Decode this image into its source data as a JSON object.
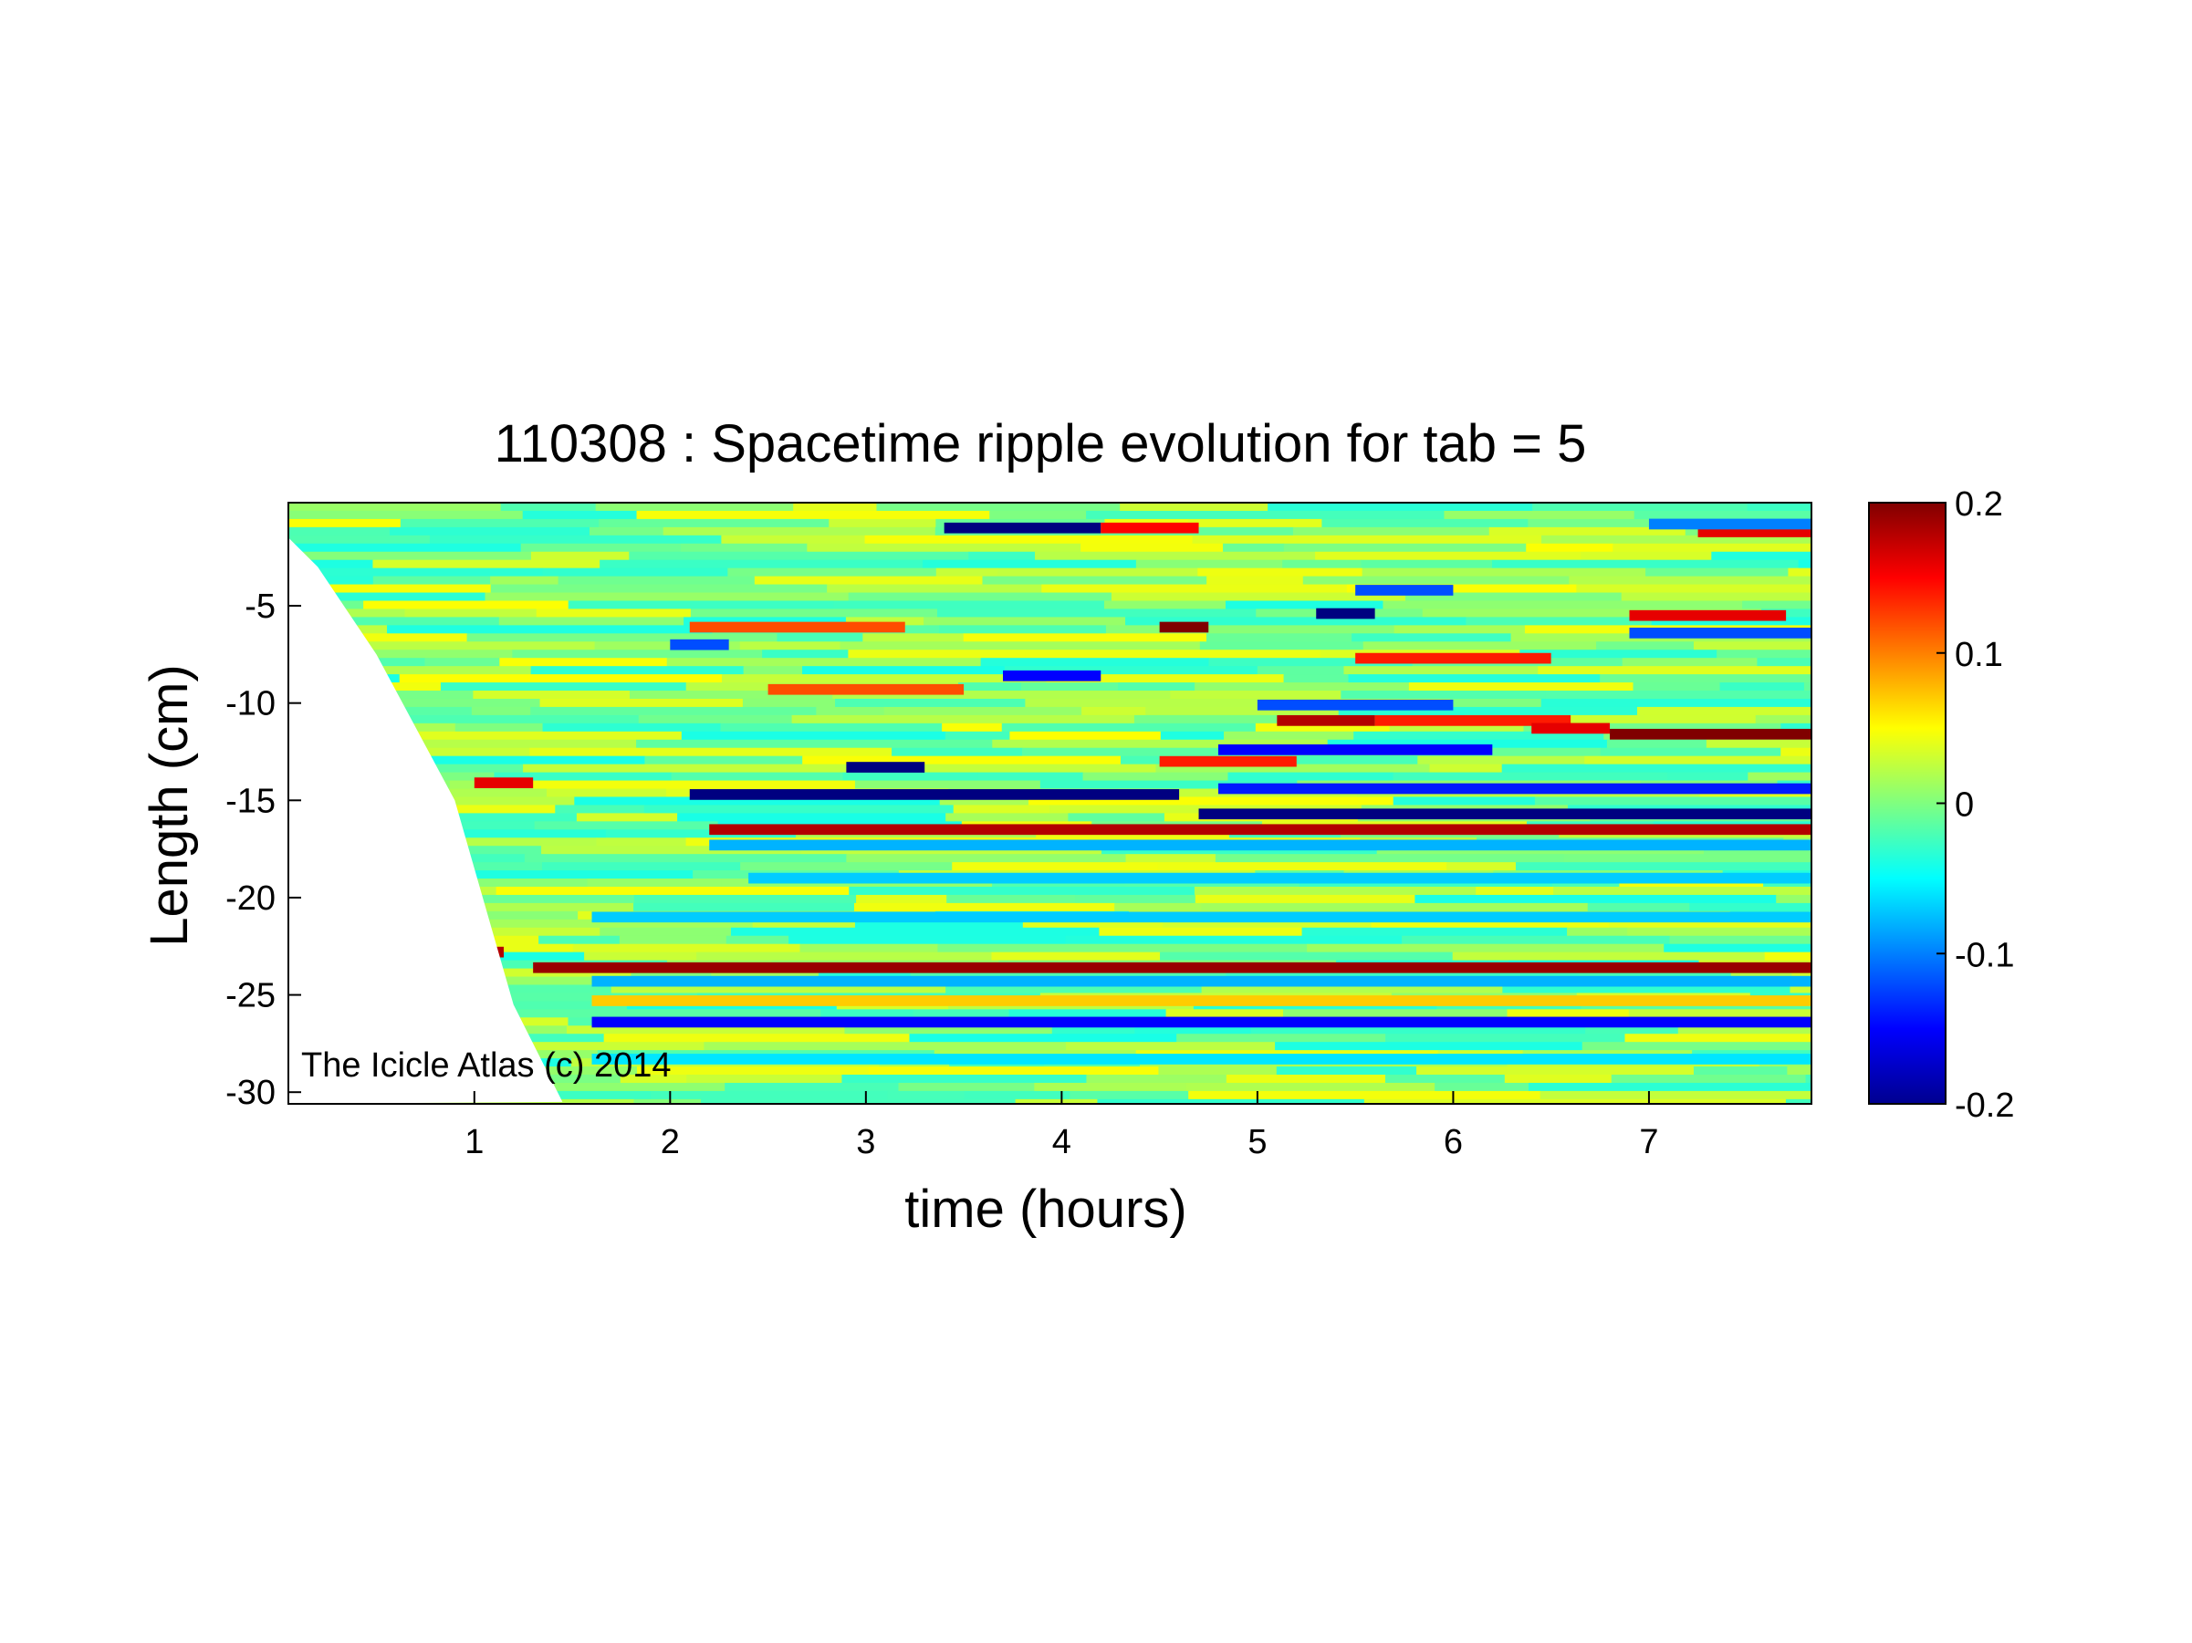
{
  "chart_data": {
    "type": "heatmap",
    "title": "110308 : Spacetime ripple evolution for tab = 5",
    "xlabel": "time (hours)",
    "ylabel": "Length (cm)",
    "xlim": [
      0.05,
      7.83
    ],
    "ylim": [
      -30.6,
      0.3
    ],
    "xticks": [
      1,
      2,
      3,
      4,
      5,
      6,
      7
    ],
    "xtick_labels": [
      "1",
      "2",
      "3",
      "4",
      "5",
      "6",
      "7"
    ],
    "yticks": [
      -5,
      -10,
      -15,
      -20,
      -25,
      -30
    ],
    "ytick_labels": [
      "-5",
      "-10",
      "-15",
      "-20",
      "-25",
      "-30"
    ],
    "colorbar": {
      "colormap": "jet",
      "clim": [
        -0.2,
        0.2
      ],
      "ticks": [
        0.2,
        0.1,
        0,
        -0.1,
        -0.2
      ],
      "tick_labels": [
        "0.2",
        "0.1",
        "0",
        "-0.1",
        "-0.2"
      ]
    },
    "annotation": "The Icicle Atlas (c) 2014",
    "growth_front": [
      [
        0.05,
        -1.5
      ],
      [
        0.2,
        -3.0
      ],
      [
        0.5,
        -7.5
      ],
      [
        0.9,
        -15.0
      ],
      [
        1.2,
        -25.5
      ],
      [
        1.45,
        -30.5
      ]
    ],
    "bands": [
      {
        "y": -1.0,
        "x0": 3.4,
        "x1": 4.2,
        "v": -0.2
      },
      {
        "y": -1.0,
        "x0": 4.2,
        "x1": 4.7,
        "v": 0.15
      },
      {
        "y": -1.2,
        "x0": 7.25,
        "x1": 7.83,
        "v": 0.16
      },
      {
        "y": -0.8,
        "x0": 7.0,
        "x1": 7.83,
        "v": -0.1
      },
      {
        "y": -4.2,
        "x0": 5.5,
        "x1": 6.0,
        "v": -0.12
      },
      {
        "y": -5.4,
        "x0": 5.3,
        "x1": 5.6,
        "v": -0.2
      },
      {
        "y": -5.5,
        "x0": 6.9,
        "x1": 7.7,
        "v": 0.16
      },
      {
        "y": -6.1,
        "x0": 4.5,
        "x1": 4.75,
        "v": 0.2
      },
      {
        "y": -6.1,
        "x0": 2.1,
        "x1": 3.2,
        "v": 0.12
      },
      {
        "y": -6.4,
        "x0": 6.9,
        "x1": 7.83,
        "v": -0.12
      },
      {
        "y": -7.0,
        "x0": 2.0,
        "x1": 2.3,
        "v": -0.12
      },
      {
        "y": -7.7,
        "x0": 5.5,
        "x1": 6.5,
        "v": 0.14
      },
      {
        "y": -8.6,
        "x0": 3.7,
        "x1": 4.2,
        "v": -0.15
      },
      {
        "y": -9.3,
        "x0": 2.5,
        "x1": 3.5,
        "v": 0.12
      },
      {
        "y": -10.1,
        "x0": 5.0,
        "x1": 6.0,
        "v": -0.12
      },
      {
        "y": -10.9,
        "x0": 5.1,
        "x1": 5.6,
        "v": 0.18
      },
      {
        "y": -10.9,
        "x0": 5.6,
        "x1": 6.6,
        "v": 0.14
      },
      {
        "y": -11.3,
        "x0": 6.4,
        "x1": 6.8,
        "v": 0.16
      },
      {
        "y": -11.6,
        "x0": 6.8,
        "x1": 7.83,
        "v": 0.21
      },
      {
        "y": -12.4,
        "x0": 4.8,
        "x1": 6.2,
        "v": -0.15
      },
      {
        "y": -13.3,
        "x0": 2.9,
        "x1": 3.3,
        "v": -0.2
      },
      {
        "y": -13.0,
        "x0": 4.5,
        "x1": 5.2,
        "v": 0.14
      },
      {
        "y": -14.1,
        "x0": 1.0,
        "x1": 1.3,
        "v": 0.16
      },
      {
        "y": -14.4,
        "x0": 4.8,
        "x1": 7.83,
        "v": -0.14
      },
      {
        "y": -14.7,
        "x0": 2.1,
        "x1": 4.6,
        "v": -0.2
      },
      {
        "y": -15.7,
        "x0": 4.7,
        "x1": 7.83,
        "v": -0.21
      },
      {
        "y": -16.5,
        "x0": 2.2,
        "x1": 7.83,
        "v": 0.18
      },
      {
        "y": -17.3,
        "x0": 2.2,
        "x1": 7.83,
        "v": -0.08
      },
      {
        "y": -19.0,
        "x0": 2.4,
        "x1": 7.83,
        "v": -0.07
      },
      {
        "y": -21.0,
        "x0": 1.6,
        "x1": 7.83,
        "v": -0.07
      },
      {
        "y": -22.8,
        "x0": 1.05,
        "x1": 1.15,
        "v": 0.18
      },
      {
        "y": -23.6,
        "x0": 1.3,
        "x1": 7.83,
        "v": 0.19
      },
      {
        "y": -24.3,
        "x0": 1.6,
        "x1": 7.83,
        "v": -0.08
      },
      {
        "y": -25.3,
        "x0": 1.6,
        "x1": 7.83,
        "v": 0.07
      },
      {
        "y": -26.4,
        "x0": 1.6,
        "x1": 7.83,
        "v": -0.15
      },
      {
        "y": -28.3,
        "x0": 1.6,
        "x1": 7.83,
        "v": -0.06
      }
    ]
  }
}
